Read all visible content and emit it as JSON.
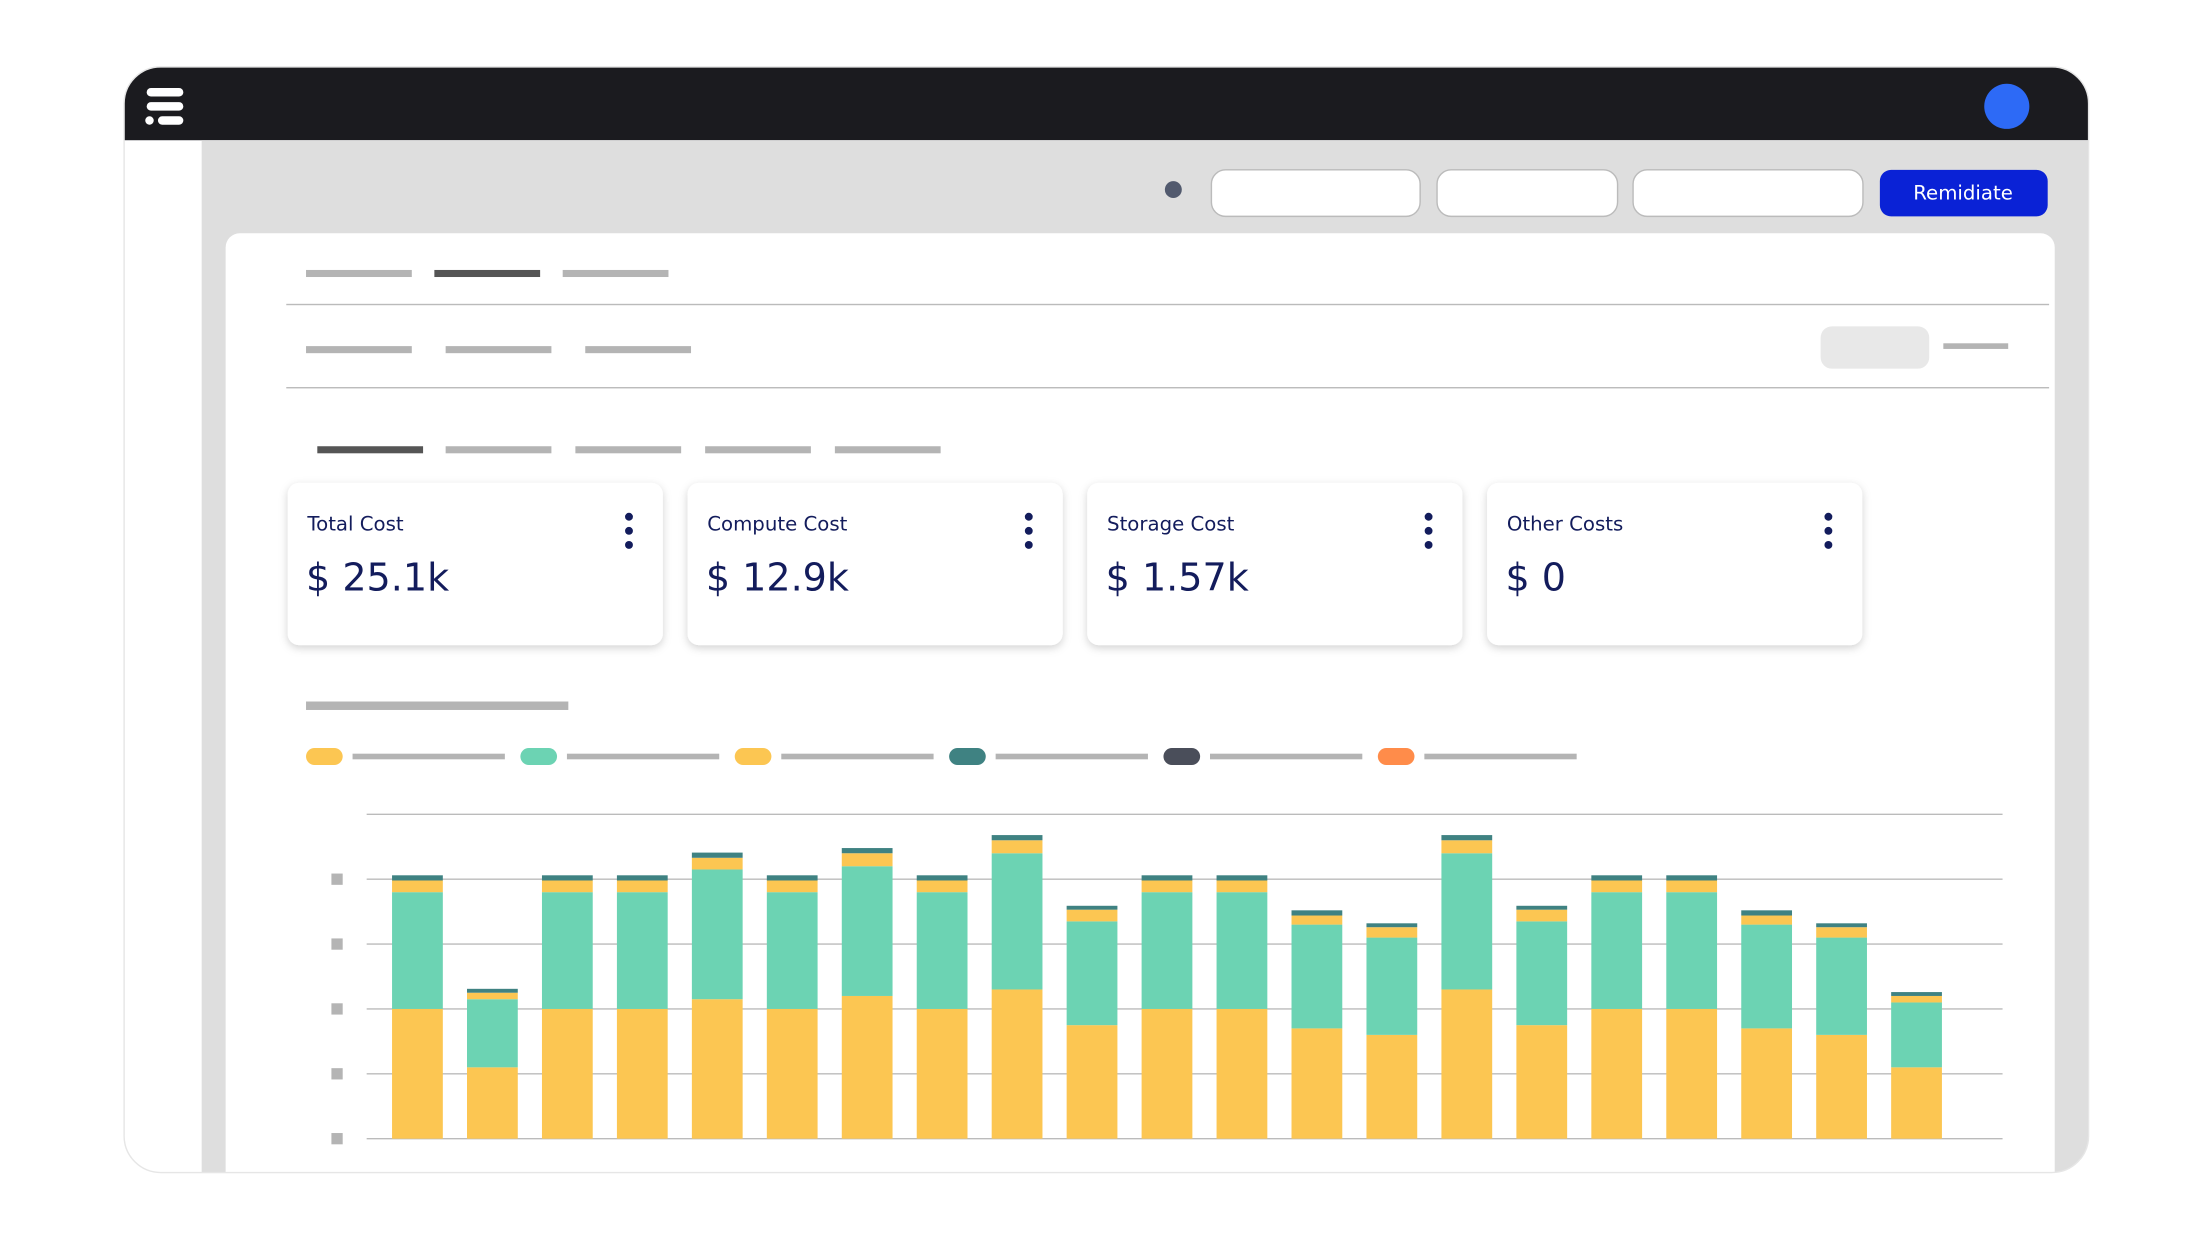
{
  "button": "Remidiate",
  "cards": [
    {
      "title": "Total Cost",
      "value": "$ 25.1k"
    },
    {
      "title": "Compute Cost",
      "value": "$ 12.9k"
    },
    {
      "title": "Storage Cost",
      "value": "$ 1.57k"
    },
    {
      "title": "Other Costs",
      "value": "$ 0"
    }
  ],
  "chart_data": {
    "type": "stacked-bar",
    "ylim": [
      0,
      5
    ],
    "yticks": [
      0,
      1,
      2,
      3,
      4
    ],
    "grid": true,
    "series": [
      {
        "color": "#fcc652",
        "values": [
          2.0,
          1.1,
          2.0,
          2.0,
          2.15,
          2.0,
          2.2,
          2.0,
          2.3,
          1.75,
          2.0,
          2.0,
          1.7,
          1.6,
          2.3,
          1.75,
          2.0,
          2.0,
          1.7,
          1.6,
          1.1
        ]
      },
      {
        "color": "#6cd3b3",
        "values": [
          1.8,
          1.05,
          1.8,
          1.8,
          2.0,
          1.8,
          2.0,
          1.8,
          2.1,
          1.6,
          1.8,
          1.8,
          1.6,
          1.5,
          2.1,
          1.6,
          1.8,
          1.8,
          1.6,
          1.5,
          1.0
        ]
      },
      {
        "color": "#fcc652",
        "values": [
          0.18,
          0.1,
          0.18,
          0.18,
          0.18,
          0.18,
          0.2,
          0.18,
          0.2,
          0.18,
          0.18,
          0.18,
          0.14,
          0.16,
          0.2,
          0.18,
          0.18,
          0.18,
          0.14,
          0.16,
          0.1
        ]
      },
      {
        "color": "#3f8282",
        "values": [
          0.08,
          0.06,
          0.08,
          0.08,
          0.08,
          0.08,
          0.08,
          0.08,
          0.08,
          0.06,
          0.08,
          0.08,
          0.08,
          0.06,
          0.08,
          0.06,
          0.08,
          0.08,
          0.08,
          0.06,
          0.06
        ]
      }
    ]
  }
}
